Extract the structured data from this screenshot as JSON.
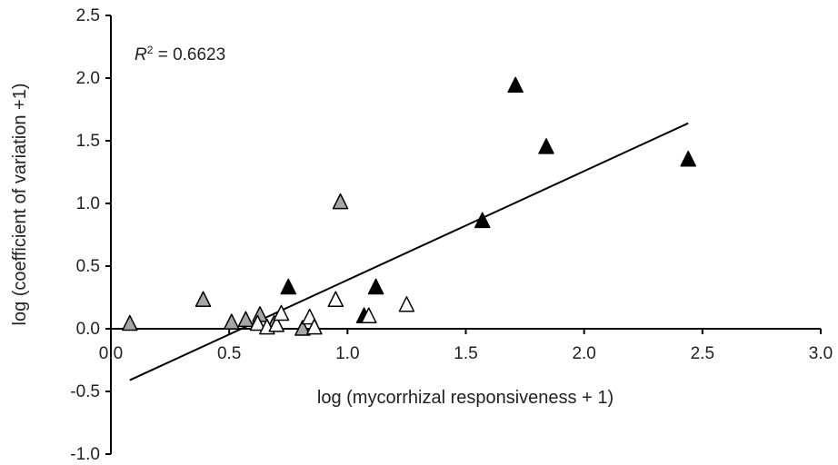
{
  "chart_data": {
    "type": "scatter",
    "xlabel": "log (mycorrhizal responsiveness + 1)",
    "ylabel": "log (coefficient of variation +1)",
    "xlim": [
      0,
      3.0
    ],
    "ylim": [
      -1.0,
      2.5
    ],
    "x_ticks": [
      "0.0",
      "0.5",
      "1.0",
      "1.5",
      "2.0",
      "2.5",
      "3.0"
    ],
    "y_ticks": [
      "-1.0",
      "-0.5",
      "0.0",
      "0.5",
      "1.0",
      "1.5",
      "2.0",
      "2.5"
    ],
    "annotation": {
      "prefix": "R",
      "sup": "2",
      "text": " = 0.6623"
    },
    "series": [
      {
        "marker": "triangle",
        "fill": "#000000",
        "points": [
          {
            "x": 0.75,
            "y": 0.33
          },
          {
            "x": 1.07,
            "y": 0.1
          },
          {
            "x": 1.12,
            "y": 0.33
          },
          {
            "x": 1.57,
            "y": 0.86
          },
          {
            "x": 1.71,
            "y": 1.94
          },
          {
            "x": 1.84,
            "y": 1.45
          },
          {
            "x": 2.44,
            "y": 1.35
          }
        ]
      },
      {
        "marker": "triangle",
        "fill": "#a6a6a6",
        "points": [
          {
            "x": 0.08,
            "y": 0.04
          },
          {
            "x": 0.39,
            "y": 0.23
          },
          {
            "x": 0.51,
            "y": 0.05
          },
          {
            "x": 0.57,
            "y": 0.07
          },
          {
            "x": 0.63,
            "y": 0.11
          },
          {
            "x": 0.69,
            "y": 0.04
          },
          {
            "x": 0.81,
            "y": 0.0
          },
          {
            "x": 0.97,
            "y": 1.01
          }
        ]
      },
      {
        "marker": "triangle",
        "fill": "#ffffff",
        "points": [
          {
            "x": 0.62,
            "y": 0.04
          },
          {
            "x": 0.66,
            "y": 0.01
          },
          {
            "x": 0.7,
            "y": 0.03
          },
          {
            "x": 0.72,
            "y": 0.12
          },
          {
            "x": 0.84,
            "y": 0.09
          },
          {
            "x": 0.86,
            "y": 0.01
          },
          {
            "x": 0.95,
            "y": 0.23
          },
          {
            "x": 1.09,
            "y": 0.1
          },
          {
            "x": 1.25,
            "y": 0.19
          }
        ]
      }
    ],
    "trendline": {
      "x": [
        0.08,
        2.44
      ],
      "y": [
        -0.41,
        1.64
      ]
    }
  }
}
